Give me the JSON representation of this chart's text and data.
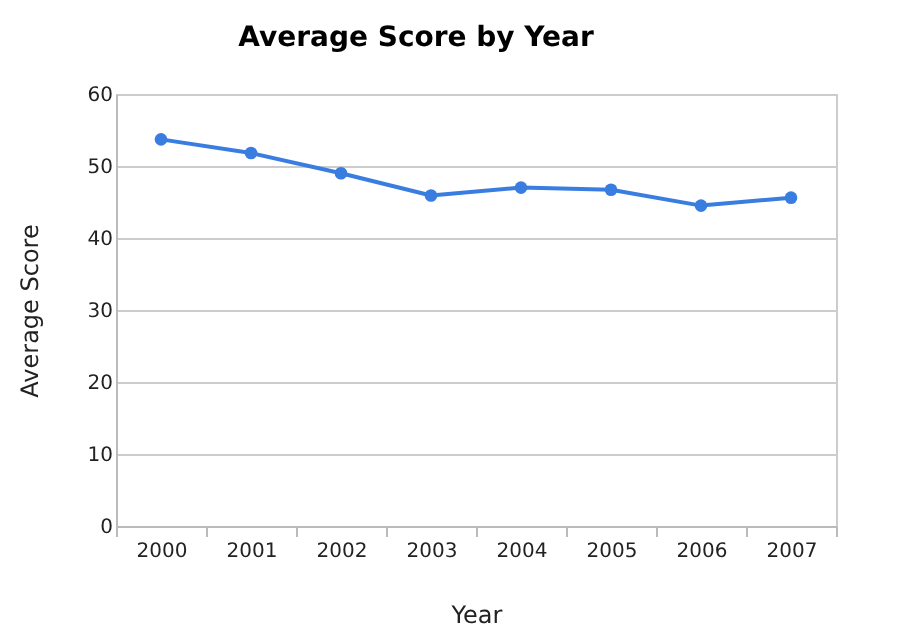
{
  "chart_data": {
    "type": "line",
    "title": "Average Score by Year",
    "xlabel": "Year",
    "ylabel": "Average Score",
    "categories": [
      "2000",
      "2001",
      "2002",
      "2003",
      "2004",
      "2005",
      "2006",
      "2007"
    ],
    "series": [
      {
        "color": "#3a7de0",
        "values": [
          53.7,
          51.8,
          49.0,
          45.9,
          47.0,
          46.7,
          44.5,
          45.6
        ]
      }
    ],
    "ylim": [
      0,
      60
    ],
    "yticks": [
      0,
      10,
      20,
      30,
      40,
      50,
      60
    ],
    "grid": "y",
    "marker": "circle",
    "legend": false
  }
}
